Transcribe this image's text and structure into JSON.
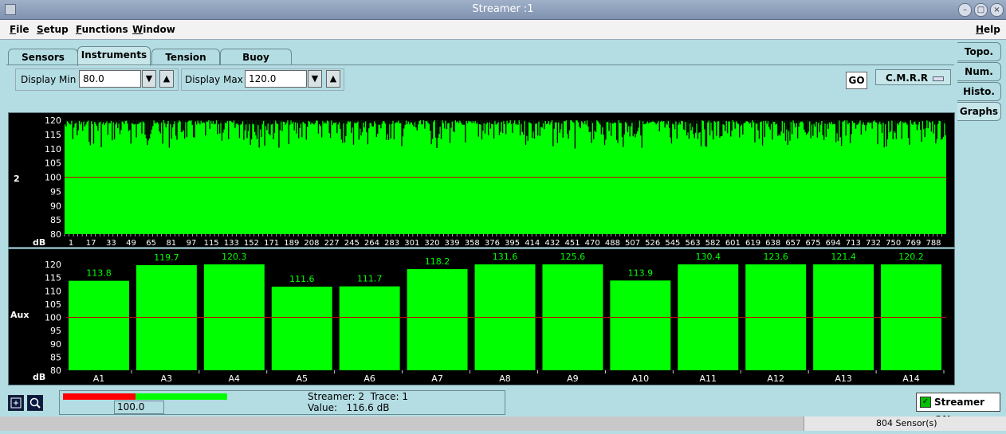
{
  "window": {
    "title": "Streamer :1"
  },
  "menu": [
    "File",
    "Setup",
    "Functions",
    "Window"
  ],
  "help": "Help",
  "tabs": [
    "Sensors",
    "Instruments",
    "Tension",
    "Buoy Current"
  ],
  "active_tab": "Instruments",
  "controls": {
    "display_min_label": "Display Min",
    "display_min_value": "80.0",
    "display_max_label": "Display Max",
    "display_max_value": "120.0",
    "go_label": "GO",
    "mode_value": "C.M.R.R"
  },
  "side_tabs": [
    "Topo.",
    "Num.",
    "Histo.",
    "Graphs"
  ],
  "active_side_tab": "Graphs",
  "colors": {
    "bar": "#00ff00",
    "reference_line": "#cc0000",
    "background": "#000000",
    "progress_red": "#ff0000",
    "progress_green": "#00ff00"
  },
  "chart_data": [
    {
      "type": "bar",
      "row_label": "2",
      "unit": "dB",
      "ylim": [
        80,
        120
      ],
      "yticks": [
        80,
        85,
        90,
        95,
        100,
        105,
        110,
        115,
        120
      ],
      "reference_value": 100,
      "x_tick_labels": [
        "1",
        "17",
        "33",
        "49",
        "65",
        "81",
        "97",
        "115",
        "133",
        "152",
        "171",
        "189",
        "208",
        "227",
        "245",
        "264",
        "283",
        "301",
        "320",
        "339",
        "358",
        "376",
        "395",
        "414",
        "432",
        "451",
        "470",
        "488",
        "507",
        "526",
        "545",
        "563",
        "582",
        "601",
        "619",
        "638",
        "657",
        "675",
        "694",
        "713",
        "732",
        "750",
        "769",
        "788"
      ],
      "trace_count": 804,
      "values_note": "dense traces mostly 112-120 dB"
    },
    {
      "type": "bar",
      "row_label": "Aux",
      "unit": "dB",
      "ylim": [
        80,
        120
      ],
      "yticks": [
        80,
        85,
        90,
        95,
        100,
        105,
        110,
        115,
        120
      ],
      "reference_value": 100,
      "categories": [
        "A1",
        "A3",
        "A4",
        "A5",
        "A6",
        "A7",
        "A8",
        "A9",
        "A10",
        "A11",
        "A12",
        "A13",
        "A14"
      ],
      "values": [
        113.8,
        119.7,
        120.3,
        111.6,
        111.7,
        118.2,
        131.6,
        125.6,
        113.9,
        130.4,
        123.6,
        121.4,
        120.2
      ],
      "value_labels": [
        "113.8",
        "119.7",
        "120.3",
        "111.6",
        "111.7",
        "118.2",
        "131.6",
        "125.6",
        "113.9",
        "130.4",
        "123.6",
        "121.4",
        "120.2"
      ]
    }
  ],
  "status": {
    "streamer_line": "Streamer: 2  Trace: 1",
    "value_line": "Value:   116.6 dB",
    "progress_value": "100.0",
    "progress_fraction": 0.44,
    "streamer_on_label": "Streamer ON",
    "sensor_count": "804 Sensor(s)"
  }
}
